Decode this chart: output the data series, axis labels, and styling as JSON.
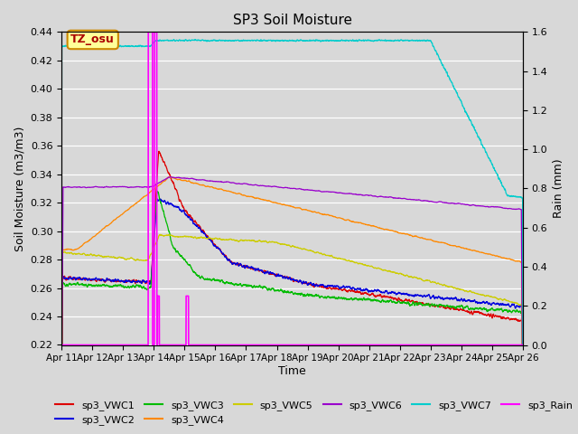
{
  "title": "SP3 Soil Moisture",
  "xlabel": "Time",
  "ylabel_left": "Soil Moisture (m3/m3)",
  "ylabel_right": "Rain (mm)",
  "ylim_left": [
    0.22,
    0.44
  ],
  "ylim_right": [
    0.0,
    1.6
  ],
  "x_tick_labels": [
    "Apr 11",
    "Apr 12",
    "Apr 13",
    "Apr 14",
    "Apr 15",
    "Apr 16",
    "Apr 17",
    "Apr 18",
    "Apr 19",
    "Apr 20",
    "Apr 21",
    "Apr 22",
    "Apr 23",
    "Apr 24",
    "Apr 25",
    "Apr 26"
  ],
  "annotation_text": "TZ_osu",
  "bg_color": "#d8d8d8",
  "series_colors": {
    "sp3_VWC1": "#dd0000",
    "sp3_VWC2": "#0000dd",
    "sp3_VWC3": "#00bb00",
    "sp3_VWC4": "#ff8800",
    "sp3_VWC5": "#cccc00",
    "sp3_VWC6": "#9900cc",
    "sp3_VWC7": "#00cccc",
    "sp3_Rain": "#ff00ff"
  },
  "legend_order": [
    "sp3_VWC1",
    "sp3_VWC2",
    "sp3_VWC3",
    "sp3_VWC4",
    "sp3_VWC5",
    "sp3_VWC6",
    "sp3_VWC7",
    "sp3_Rain"
  ]
}
